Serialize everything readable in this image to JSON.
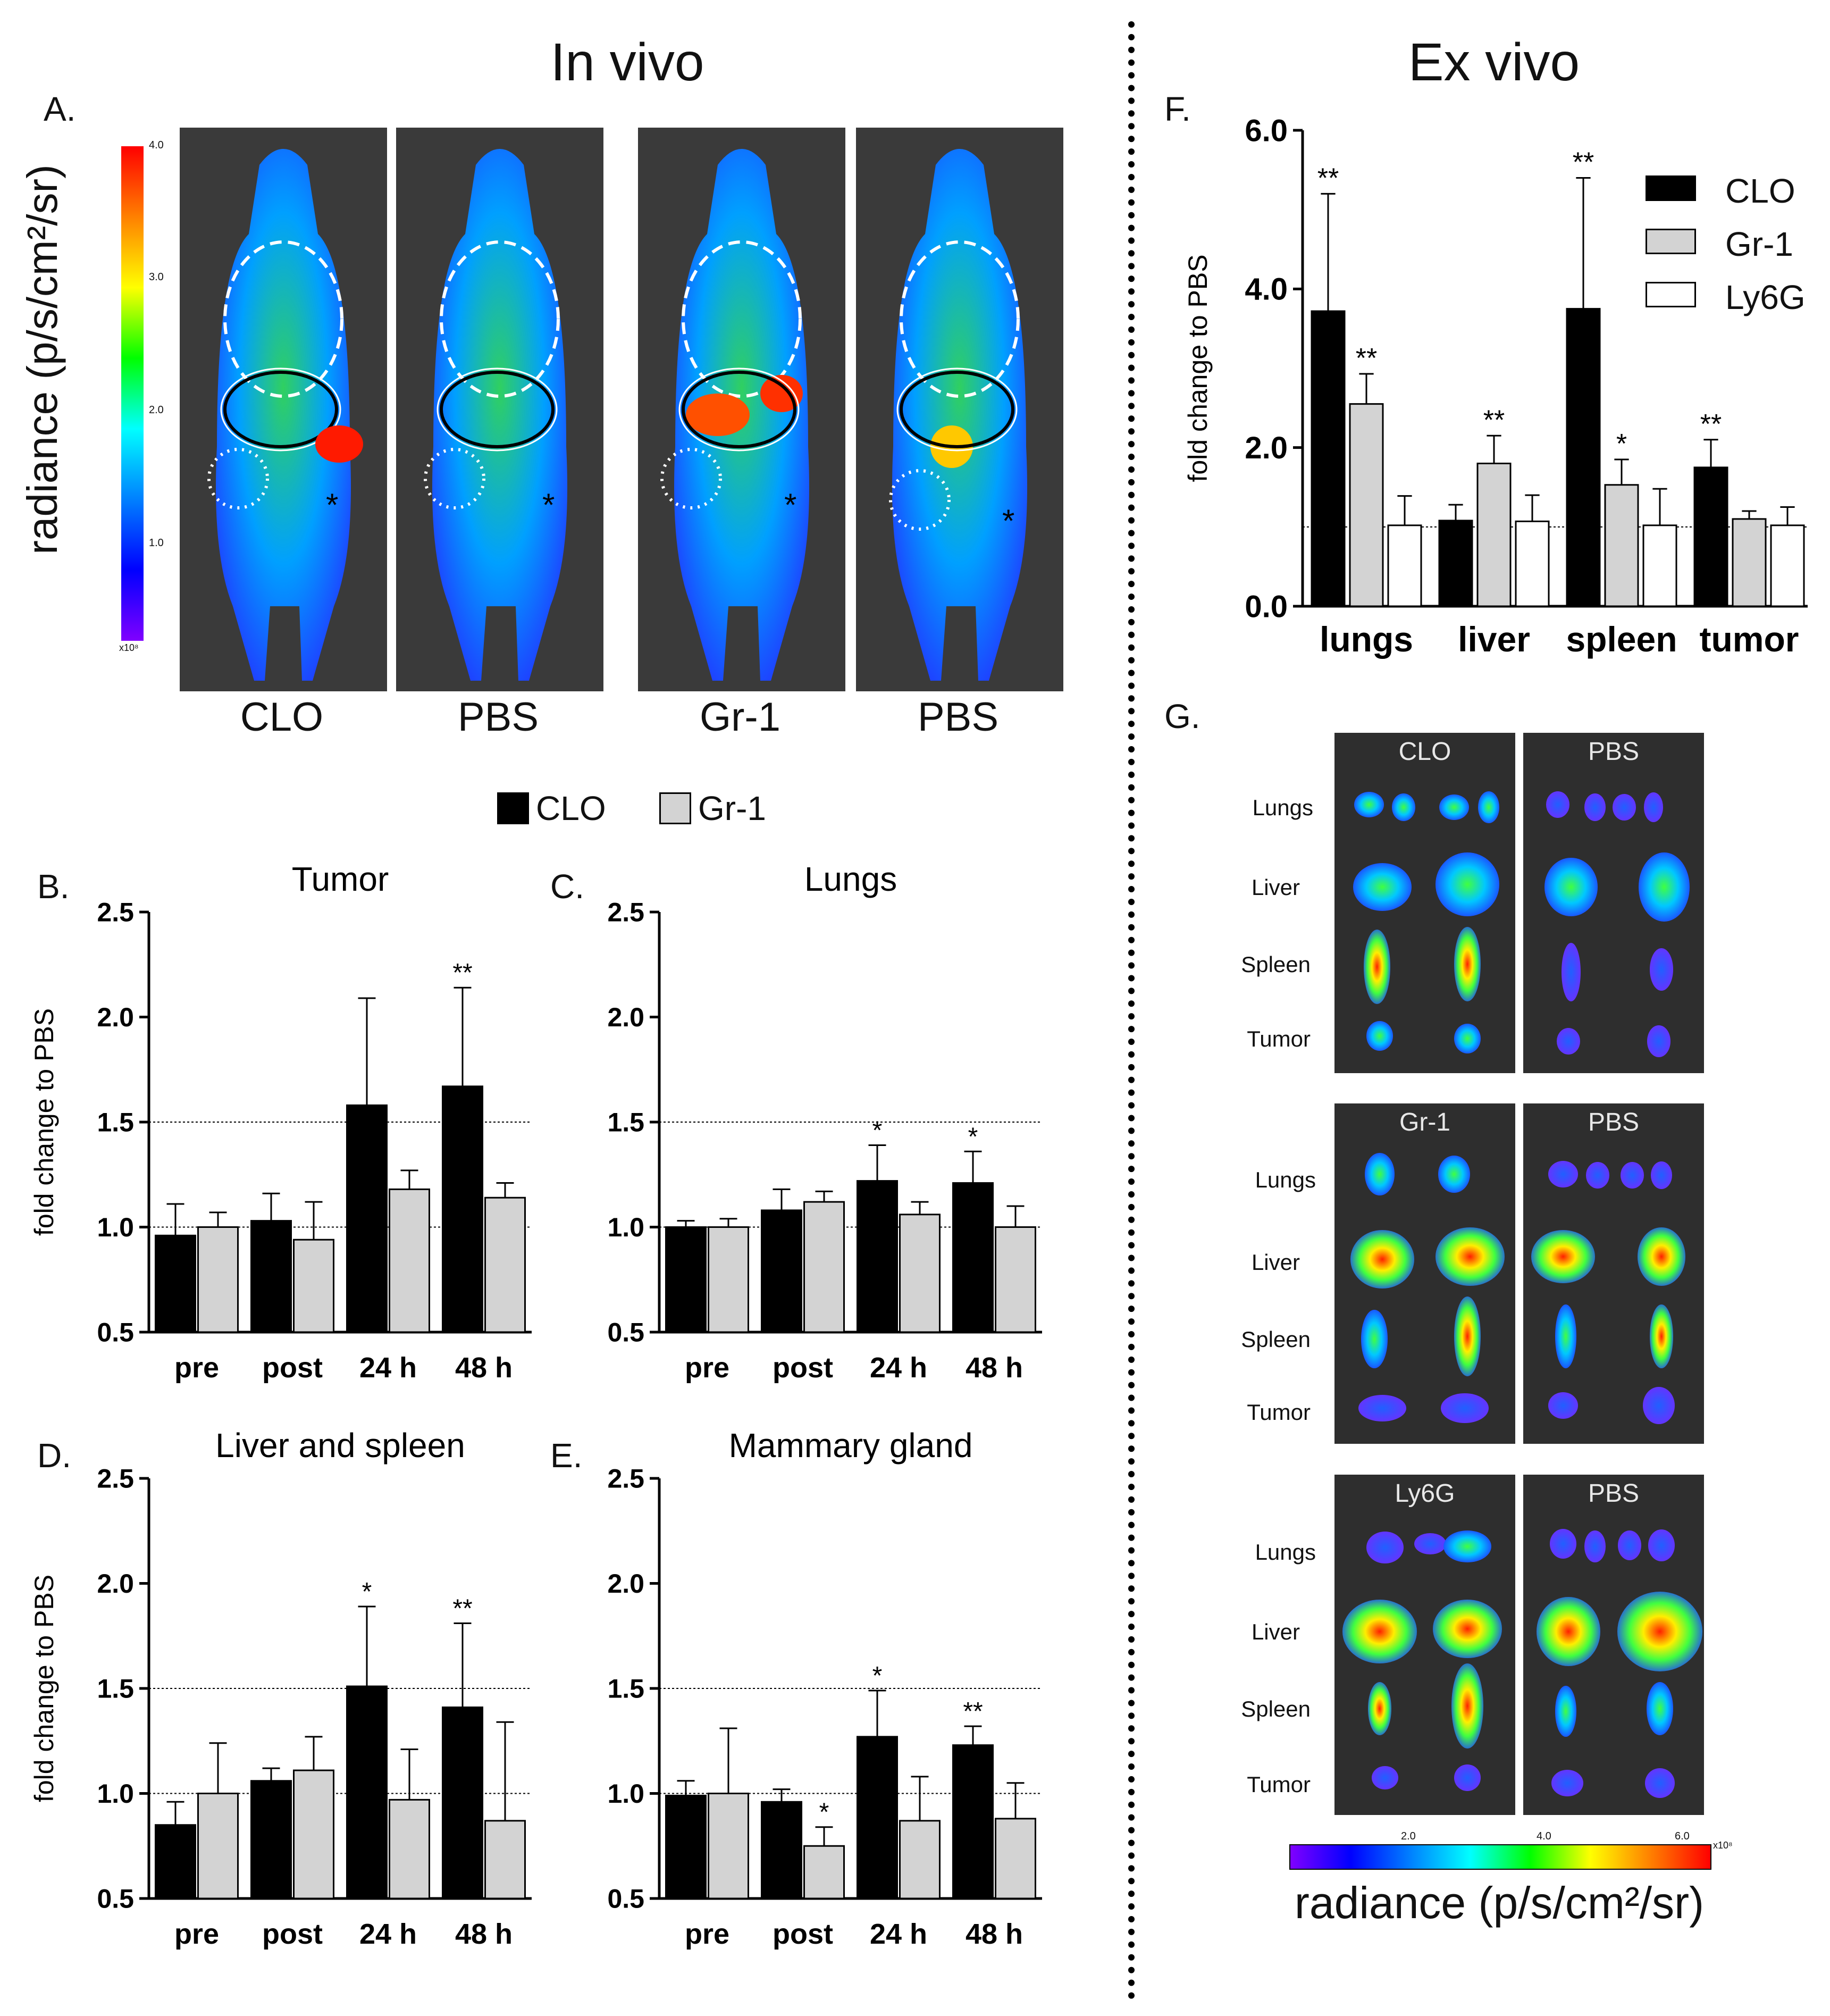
{
  "headers": {
    "in_vivo": "In vivo",
    "ex_vivo": "Ex vivo"
  },
  "panel_letters": {
    "A": "A.",
    "B": "B.",
    "C": "C.",
    "D": "D.",
    "E": "E.",
    "F": "F.",
    "G": "G."
  },
  "colors": {
    "clo": "#000000",
    "gr1": "#d3d3d3",
    "ly6g": "#ffffff",
    "axis": "#111111"
  },
  "panel_a": {
    "colorbar_label": "radiance (p/s/cm²/sr)",
    "colorbar_ticks": [
      "4.0",
      "3.0",
      "2.0",
      "1.0"
    ],
    "colorbar_unit": "x10⁸",
    "mice": [
      "CLO",
      "PBS",
      "Gr-1",
      "PBS"
    ]
  },
  "main_legend": {
    "items": [
      "CLO",
      "Gr-1"
    ]
  },
  "panel_f_legend": {
    "items": [
      "CLO",
      "Gr-1",
      "Ly6G"
    ]
  },
  "panel_g": {
    "groups": [
      {
        "left": "CLO",
        "right": "PBS"
      },
      {
        "left": "Gr-1",
        "right": "PBS"
      },
      {
        "left": "Ly6G",
        "right": "PBS"
      }
    ],
    "organs": [
      "Lungs",
      "Liver",
      "Spleen",
      "Tumor"
    ],
    "colorbar_ticks": [
      "2.0",
      "4.0",
      "6.0"
    ],
    "colorbar_unit": "x10⁸",
    "colorbar_label": "radiance (p/s/cm²/sr)"
  },
  "chart_data": [
    {
      "id": "B",
      "type": "bar",
      "title": "Tumor",
      "ylabel": "fold change to PBS",
      "categories": [
        "pre",
        "post",
        "24 h",
        "48 h"
      ],
      "ylim": [
        0.5,
        2.5
      ],
      "yticks": [
        "0.5",
        "1.0",
        "1.5",
        "2.0",
        "2.5"
      ],
      "reflines": [
        1.0,
        1.5
      ],
      "series": [
        {
          "name": "CLO",
          "values": [
            0.96,
            1.03,
            1.58,
            1.67
          ],
          "errors": [
            0.15,
            0.13,
            0.51,
            0.47
          ],
          "sig": [
            "",
            "",
            "",
            "**"
          ]
        },
        {
          "name": "Gr-1",
          "values": [
            1.0,
            0.94,
            1.18,
            1.14
          ],
          "errors": [
            0.07,
            0.18,
            0.09,
            0.07
          ],
          "sig": [
            "",
            "",
            "",
            ""
          ]
        }
      ]
    },
    {
      "id": "C",
      "type": "bar",
      "title": "Lungs",
      "ylabel": "",
      "categories": [
        "pre",
        "post",
        "24 h",
        "48 h"
      ],
      "ylim": [
        0.5,
        2.5
      ],
      "yticks": [
        "0.5",
        "1.0",
        "1.5",
        "2.0",
        "2.5"
      ],
      "reflines": [
        1.0,
        1.5
      ],
      "series": [
        {
          "name": "CLO",
          "values": [
            1.0,
            1.08,
            1.22,
            1.21
          ],
          "errors": [
            0.03,
            0.1,
            0.17,
            0.15
          ],
          "sig": [
            "",
            "",
            "*",
            "*"
          ]
        },
        {
          "name": "Gr-1",
          "values": [
            1.0,
            1.12,
            1.06,
            1.0
          ],
          "errors": [
            0.04,
            0.05,
            0.06,
            0.1
          ],
          "sig": [
            "",
            "",
            "",
            ""
          ]
        }
      ]
    },
    {
      "id": "D",
      "type": "bar",
      "title": "Liver and spleen",
      "ylabel": "fold change to PBS",
      "categories": [
        "pre",
        "post",
        "24 h",
        "48 h"
      ],
      "ylim": [
        0.5,
        2.5
      ],
      "yticks": [
        "0.5",
        "1.0",
        "1.5",
        "2.0",
        "2.5"
      ],
      "reflines": [
        1.0,
        1.5
      ],
      "series": [
        {
          "name": "CLO",
          "values": [
            0.85,
            1.06,
            1.51,
            1.41
          ],
          "errors": [
            0.11,
            0.06,
            0.38,
            0.4
          ],
          "sig": [
            "",
            "",
            "*",
            "**"
          ]
        },
        {
          "name": "Gr-1",
          "values": [
            1.0,
            1.11,
            0.97,
            0.87
          ],
          "errors": [
            0.24,
            0.16,
            0.24,
            0.47
          ],
          "sig": [
            "",
            "",
            "",
            ""
          ]
        }
      ]
    },
    {
      "id": "E",
      "type": "bar",
      "title": "Mammary gland",
      "ylabel": "",
      "categories": [
        "pre",
        "post",
        "24 h",
        "48 h"
      ],
      "ylim": [
        0.5,
        2.5
      ],
      "yticks": [
        "0.5",
        "1.0",
        "1.5",
        "2.0",
        "2.5"
      ],
      "reflines": [
        1.0,
        1.5
      ],
      "series": [
        {
          "name": "CLO",
          "values": [
            0.99,
            0.96,
            1.27,
            1.23
          ],
          "errors": [
            0.07,
            0.06,
            0.22,
            0.09
          ],
          "sig": [
            "",
            "",
            "*",
            "**"
          ]
        },
        {
          "name": "Gr-1",
          "values": [
            1.0,
            0.75,
            0.87,
            0.88
          ],
          "errors": [
            0.31,
            0.09,
            0.21,
            0.17
          ],
          "sig": [
            "",
            "*",
            "",
            ""
          ]
        }
      ]
    },
    {
      "id": "F",
      "type": "bar",
      "title": "",
      "ylabel": "fold change to PBS",
      "categories": [
        "lungs",
        "liver",
        "spleen",
        "tumor"
      ],
      "ylim": [
        0,
        6
      ],
      "yticks": [
        "0.0",
        "2.0",
        "4.0",
        "6.0"
      ],
      "reflines": [
        1.0
      ],
      "series": [
        {
          "name": "CLO",
          "values": [
            3.72,
            1.08,
            3.75,
            1.75
          ],
          "errors": [
            1.48,
            0.2,
            1.65,
            0.35
          ],
          "sig": [
            "**",
            "",
            "**",
            "**"
          ]
        },
        {
          "name": "Gr-1",
          "values": [
            2.55,
            1.8,
            1.53,
            1.1
          ],
          "errors": [
            0.38,
            0.35,
            0.32,
            0.1
          ],
          "sig": [
            "**",
            "**",
            "*",
            ""
          ]
        },
        {
          "name": "Ly6G",
          "values": [
            1.02,
            1.07,
            1.02,
            1.02
          ],
          "errors": [
            0.37,
            0.33,
            0.46,
            0.23
          ],
          "sig": [
            "",
            "",
            "",
            ""
          ]
        }
      ]
    }
  ]
}
